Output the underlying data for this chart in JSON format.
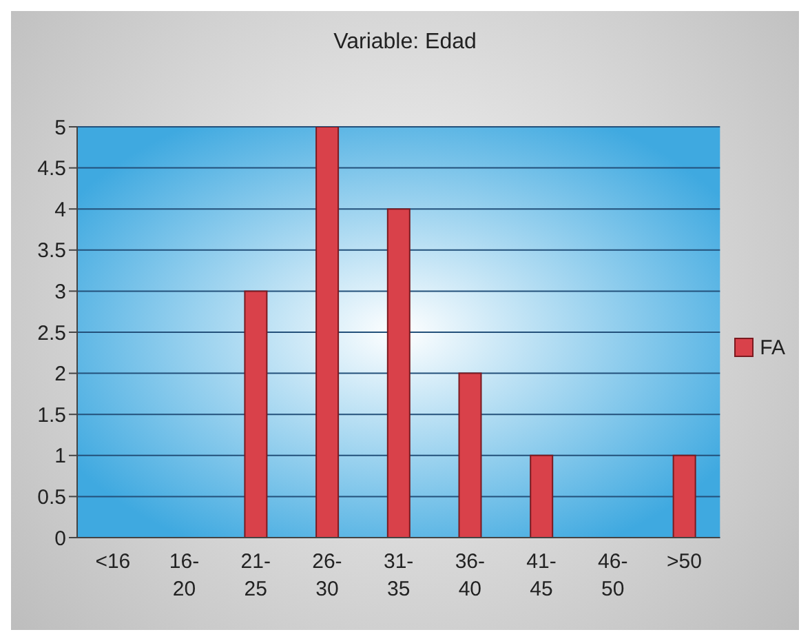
{
  "chart_data": {
    "type": "bar",
    "title": "Variable: Edad",
    "categories": [
      "<16",
      "16-20",
      "21-25",
      "26-30",
      "31-35",
      "36-40",
      "41-45",
      "46-50",
      ">50"
    ],
    "series": [
      {
        "name": "FA",
        "color": "#d9414a",
        "values": [
          0,
          0,
          3,
          5,
          4,
          2,
          1,
          0,
          1
        ]
      }
    ],
    "ylim": [
      0,
      5
    ],
    "yticks": [
      0,
      0.5,
      1,
      1.5,
      2,
      2.5,
      3,
      3.5,
      4,
      4.5,
      5
    ],
    "grid": "y",
    "legend": "right"
  }
}
